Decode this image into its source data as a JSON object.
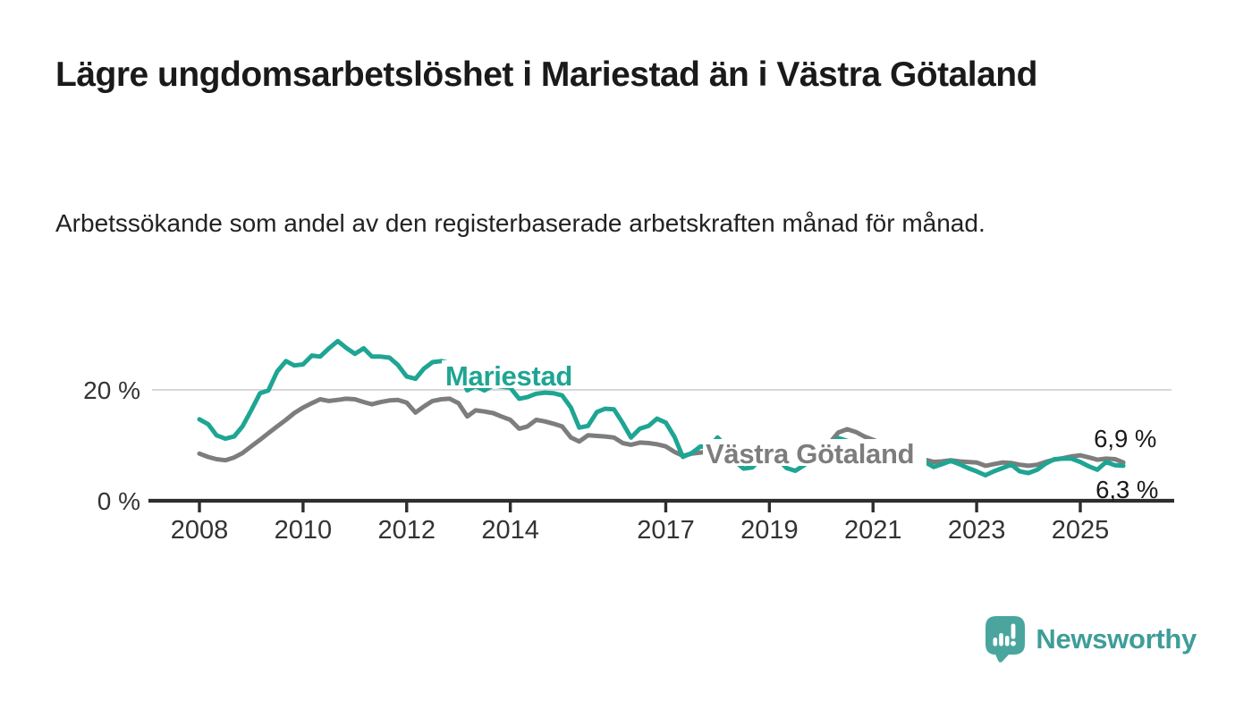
{
  "header": {
    "title": "Lägre ungdomsarbetslöshet i Mariestad än i Västra Götaland",
    "subtitle": "Arbetssökande som andel av den registerbaserade arbetskraften månad för månad."
  },
  "branding": {
    "name": "Newsworthy"
  },
  "chart_data": {
    "type": "line",
    "title": "",
    "xlabel": "",
    "ylabel": "",
    "unit": "%",
    "ylim": [
      0,
      30
    ],
    "xlim": [
      2007.0,
      2026.6
    ],
    "grid": "single horizontal gridline at 20%",
    "gridline_at": 20,
    "y_ticks": [
      {
        "value": 0,
        "label": "0 %"
      },
      {
        "value": 20,
        "label": "20 %"
      }
    ],
    "x_ticks": [
      2008,
      2010,
      2012,
      2014,
      2017,
      2019,
      2021,
      2023,
      2025
    ],
    "legend_position": "inline labels on lines",
    "colors": {
      "mariestad": "#1ea593",
      "vastra_gotaland": "#7d7d7d",
      "gridline": "#cccccc",
      "axis": "#2e2e2e",
      "tick_text": "#333333",
      "end_label_text": "#1a1a1a"
    },
    "series": [
      {
        "name": "Västra Götaland",
        "color": "#7d7d7d",
        "end_label": "6,9 %",
        "points": [
          [
            2008.0,
            8.5
          ],
          [
            2008.17,
            7.9
          ],
          [
            2008.33,
            7.5
          ],
          [
            2008.5,
            7.3
          ],
          [
            2008.67,
            7.8
          ],
          [
            2008.83,
            8.6
          ],
          [
            2009.0,
            9.8
          ],
          [
            2009.17,
            11.0
          ],
          [
            2009.33,
            12.2
          ],
          [
            2009.5,
            13.4
          ],
          [
            2009.67,
            14.6
          ],
          [
            2009.83,
            15.8
          ],
          [
            2010.0,
            16.8
          ],
          [
            2010.17,
            17.6
          ],
          [
            2010.33,
            18.3
          ],
          [
            2010.5,
            18.0
          ],
          [
            2010.67,
            18.2
          ],
          [
            2010.83,
            18.4
          ],
          [
            2011.0,
            18.3
          ],
          [
            2011.17,
            17.8
          ],
          [
            2011.33,
            17.4
          ],
          [
            2011.5,
            17.8
          ],
          [
            2011.67,
            18.1
          ],
          [
            2011.83,
            18.2
          ],
          [
            2012.0,
            17.7
          ],
          [
            2012.17,
            15.9
          ],
          [
            2012.33,
            17.0
          ],
          [
            2012.5,
            18.0
          ],
          [
            2012.67,
            18.3
          ],
          [
            2012.83,
            18.4
          ],
          [
            2013.0,
            17.6
          ],
          [
            2013.17,
            15.2
          ],
          [
            2013.33,
            16.3
          ],
          [
            2013.5,
            16.1
          ],
          [
            2013.67,
            15.8
          ],
          [
            2013.83,
            15.2
          ],
          [
            2014.0,
            14.6
          ],
          [
            2014.17,
            13.0
          ],
          [
            2014.33,
            13.4
          ],
          [
            2014.5,
            14.6
          ],
          [
            2014.67,
            14.3
          ],
          [
            2014.83,
            13.9
          ],
          [
            2015.0,
            13.4
          ],
          [
            2015.17,
            11.4
          ],
          [
            2015.33,
            10.7
          ],
          [
            2015.5,
            11.8
          ],
          [
            2015.67,
            11.7
          ],
          [
            2015.83,
            11.6
          ],
          [
            2016.0,
            11.4
          ],
          [
            2016.17,
            10.4
          ],
          [
            2016.33,
            10.1
          ],
          [
            2016.5,
            10.5
          ],
          [
            2016.67,
            10.4
          ],
          [
            2016.83,
            10.2
          ],
          [
            2017.0,
            9.8
          ],
          [
            2017.17,
            8.8
          ],
          [
            2017.33,
            8.1
          ],
          [
            2017.5,
            8.5
          ],
          [
            2017.67,
            8.7
          ],
          [
            2017.83,
            8.9
          ],
          [
            2018.0,
            9.0
          ],
          [
            2018.17,
            8.6
          ],
          [
            2018.33,
            8.2
          ],
          [
            2018.5,
            8.0
          ],
          [
            2018.67,
            8.2
          ],
          [
            2018.83,
            8.5
          ],
          [
            2019.0,
            8.7
          ],
          [
            2019.17,
            8.4
          ],
          [
            2019.33,
            8.1
          ],
          [
            2019.5,
            8.0
          ],
          [
            2019.67,
            8.2
          ],
          [
            2019.83,
            8.6
          ],
          [
            2020.0,
            9.0
          ],
          [
            2020.17,
            10.5
          ],
          [
            2020.33,
            12.3
          ],
          [
            2020.5,
            12.9
          ],
          [
            2020.67,
            12.4
          ],
          [
            2020.83,
            11.6
          ],
          [
            2021.0,
            11.0
          ],
          [
            2021.17,
            10.3
          ],
          [
            2021.33,
            9.6
          ],
          [
            2021.5,
            9.0
          ],
          [
            2021.67,
            8.5
          ],
          [
            2021.83,
            7.9
          ],
          [
            2022.0,
            7.4
          ],
          [
            2022.17,
            7.0
          ],
          [
            2022.33,
            7.1
          ],
          [
            2022.5,
            7.3
          ],
          [
            2022.67,
            7.1
          ],
          [
            2022.83,
            7.0
          ],
          [
            2023.0,
            6.9
          ],
          [
            2023.17,
            6.3
          ],
          [
            2023.33,
            6.6
          ],
          [
            2023.5,
            6.9
          ],
          [
            2023.67,
            6.8
          ],
          [
            2023.83,
            6.5
          ],
          [
            2024.0,
            6.3
          ],
          [
            2024.17,
            6.5
          ],
          [
            2024.33,
            7.0
          ],
          [
            2024.5,
            7.4
          ],
          [
            2024.67,
            7.7
          ],
          [
            2024.83,
            8.0
          ],
          [
            2025.0,
            8.2
          ],
          [
            2025.17,
            7.8
          ],
          [
            2025.33,
            7.4
          ],
          [
            2025.5,
            7.6
          ],
          [
            2025.67,
            7.5
          ],
          [
            2025.83,
            6.9
          ]
        ]
      },
      {
        "name": "Mariestad",
        "color": "#1ea593",
        "end_label": "6,3 %",
        "points": [
          [
            2008.0,
            14.7
          ],
          [
            2008.17,
            13.8
          ],
          [
            2008.33,
            11.8
          ],
          [
            2008.5,
            11.2
          ],
          [
            2008.67,
            11.6
          ],
          [
            2008.83,
            13.4
          ],
          [
            2009.0,
            16.3
          ],
          [
            2009.17,
            19.4
          ],
          [
            2009.33,
            19.9
          ],
          [
            2009.5,
            23.3
          ],
          [
            2009.67,
            25.2
          ],
          [
            2009.83,
            24.4
          ],
          [
            2010.0,
            24.6
          ],
          [
            2010.17,
            26.2
          ],
          [
            2010.33,
            26.0
          ],
          [
            2010.5,
            27.5
          ],
          [
            2010.67,
            28.8
          ],
          [
            2010.83,
            27.6
          ],
          [
            2011.0,
            26.5
          ],
          [
            2011.17,
            27.5
          ],
          [
            2011.33,
            26.0
          ],
          [
            2011.5,
            26.0
          ],
          [
            2011.67,
            25.8
          ],
          [
            2011.83,
            24.5
          ],
          [
            2012.0,
            22.4
          ],
          [
            2012.17,
            22.0
          ],
          [
            2012.33,
            23.8
          ],
          [
            2012.5,
            25.0
          ],
          [
            2012.67,
            25.2
          ],
          [
            2012.83,
            24.8
          ],
          [
            2013.0,
            23.5
          ],
          [
            2013.17,
            19.9
          ],
          [
            2013.33,
            20.7
          ],
          [
            2013.5,
            19.9
          ],
          [
            2013.67,
            20.8
          ],
          [
            2013.83,
            20.6
          ],
          [
            2014.0,
            20.4
          ],
          [
            2014.17,
            18.4
          ],
          [
            2014.33,
            18.7
          ],
          [
            2014.5,
            19.3
          ],
          [
            2014.67,
            19.5
          ],
          [
            2014.83,
            19.4
          ],
          [
            2015.0,
            19.0
          ],
          [
            2015.17,
            16.8
          ],
          [
            2015.33,
            13.2
          ],
          [
            2015.5,
            13.5
          ],
          [
            2015.67,
            16.0
          ],
          [
            2015.83,
            16.6
          ],
          [
            2016.0,
            16.5
          ],
          [
            2016.17,
            14.0
          ],
          [
            2016.33,
            11.4
          ],
          [
            2016.5,
            13.0
          ],
          [
            2016.67,
            13.5
          ],
          [
            2016.83,
            14.8
          ],
          [
            2017.0,
            14.1
          ],
          [
            2017.17,
            11.5
          ],
          [
            2017.33,
            7.9
          ],
          [
            2017.5,
            8.6
          ],
          [
            2017.67,
            9.8
          ],
          [
            2017.83,
            9.6
          ],
          [
            2018.0,
            11.4
          ],
          [
            2018.17,
            9.8
          ],
          [
            2018.33,
            7.2
          ],
          [
            2018.5,
            5.8
          ],
          [
            2018.67,
            6.0
          ],
          [
            2018.83,
            7.6
          ],
          [
            2019.0,
            8.8
          ],
          [
            2019.17,
            7.5
          ],
          [
            2019.33,
            5.9
          ],
          [
            2019.5,
            5.4
          ],
          [
            2019.67,
            6.4
          ],
          [
            2019.83,
            7.8
          ],
          [
            2020.0,
            8.6
          ],
          [
            2020.17,
            10.2
          ],
          [
            2020.33,
            11.3
          ],
          [
            2020.5,
            10.8
          ],
          [
            2020.67,
            10.0
          ],
          [
            2020.83,
            9.5
          ],
          [
            2021.0,
            9.3
          ],
          [
            2021.17,
            8.8
          ],
          [
            2021.33,
            8.2
          ],
          [
            2021.5,
            7.9
          ],
          [
            2021.67,
            8.2
          ],
          [
            2021.83,
            8.4
          ],
          [
            2022.0,
            7.0
          ],
          [
            2022.17,
            6.1
          ],
          [
            2022.33,
            6.6
          ],
          [
            2022.5,
            7.2
          ],
          [
            2022.67,
            6.6
          ],
          [
            2022.83,
            5.9
          ],
          [
            2023.0,
            5.3
          ],
          [
            2023.17,
            4.6
          ],
          [
            2023.33,
            5.3
          ],
          [
            2023.5,
            5.9
          ],
          [
            2023.67,
            6.5
          ],
          [
            2023.83,
            5.3
          ],
          [
            2024.0,
            5.0
          ],
          [
            2024.17,
            5.6
          ],
          [
            2024.33,
            6.7
          ],
          [
            2024.5,
            7.5
          ],
          [
            2024.67,
            7.6
          ],
          [
            2024.83,
            7.6
          ],
          [
            2025.0,
            7.0
          ],
          [
            2025.17,
            6.2
          ],
          [
            2025.33,
            5.6
          ],
          [
            2025.5,
            7.0
          ],
          [
            2025.67,
            6.4
          ],
          [
            2025.83,
            6.3
          ]
        ]
      }
    ]
  }
}
